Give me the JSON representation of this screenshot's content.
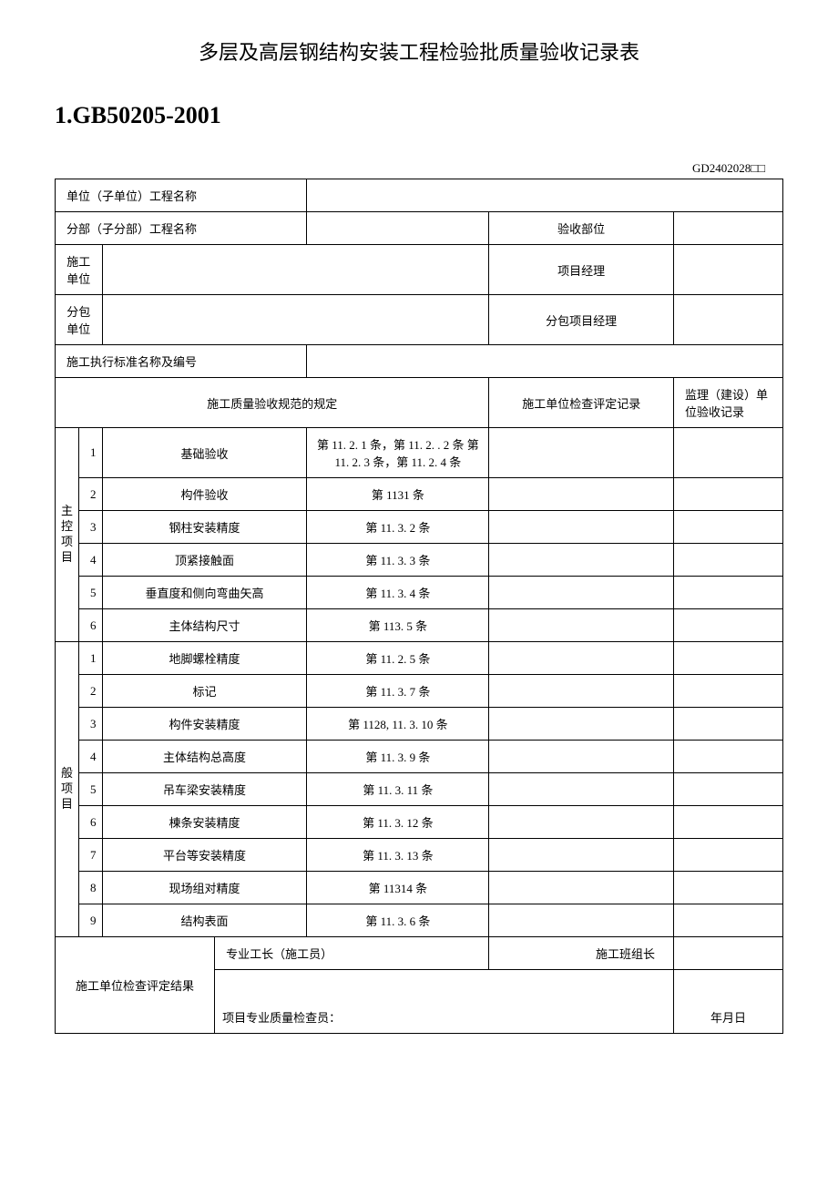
{
  "title": "多层及高层钢结构安装工程检验批质量验收记录表",
  "subtitle": "1.GB50205-2001",
  "doc_code": "GD2402028□□",
  "header_rows": {
    "unit_name_label": "单位（子单位）工程名称",
    "section_name_label": "分部（子分部）工程名称",
    "accept_part_label": "验收部位",
    "construct_unit_label": "施工单位",
    "pm_label": "项目经理",
    "subcontract_label": "分包单位",
    "sub_pm_label": "分包项目经理",
    "standard_label": "施工执行标准名称及编号"
  },
  "columns": {
    "spec": "施工质量验收规范的规定",
    "check_record": "施工单位检查评定记录",
    "sup_record": "监理（建设）单位验收记录"
  },
  "cat1": "主控项目",
  "cat1_items": [
    {
      "no": "1",
      "name": "基础验收",
      "clause": "第 11. 2. 1 条，第 11. 2. . 2 条 第 11. 2. 3 条，第 11. 2. 4 条"
    },
    {
      "no": "2",
      "name": "构件验收",
      "clause": "第 1131 条"
    },
    {
      "no": "3",
      "name": "钢柱安装精度",
      "clause": "第 11. 3. 2 条"
    },
    {
      "no": "4",
      "name": "顶紧接触面",
      "clause": "第 11. 3. 3 条"
    },
    {
      "no": "5",
      "name": "垂直度和侧向弯曲矢高",
      "clause": "第 11. 3. 4 条"
    },
    {
      "no": "6",
      "name": "主体结构尺寸",
      "clause": "第 113. 5 条"
    }
  ],
  "cat2": "般项目",
  "cat2_items": [
    {
      "no": "1",
      "name": "地脚螺栓精度",
      "clause": "第 11. 2. 5 条"
    },
    {
      "no": "2",
      "name": "标记",
      "clause": "第 11. 3. 7 条"
    },
    {
      "no": "3",
      "name": "构件安装精度",
      "clause": "第 1128, 11. 3. 10 条"
    },
    {
      "no": "4",
      "name": "主体结构总高度",
      "clause": "第 11. 3. 9 条"
    },
    {
      "no": "5",
      "name": "吊车梁安装精度",
      "clause": "第 11. 3. 11 条"
    },
    {
      "no": "6",
      "name": "棟条安装精度",
      "clause": "第 11. 3. 12 条"
    },
    {
      "no": "7",
      "name": "平台等安装精度",
      "clause": "第 11. 3. 13 条"
    },
    {
      "no": "8",
      "name": "现场组对精度",
      "clause": "第 11314 条"
    },
    {
      "no": "9",
      "name": "结构表面",
      "clause": "第 11. 3. 6 条"
    }
  ],
  "footer": {
    "result_label": "施工单位检查评定结果",
    "foreman_label": "专业工长（施工员）",
    "team_leader_label": "施工班组长",
    "inspector_label": "项目专业质量检查员：",
    "date_label": "年月日"
  }
}
